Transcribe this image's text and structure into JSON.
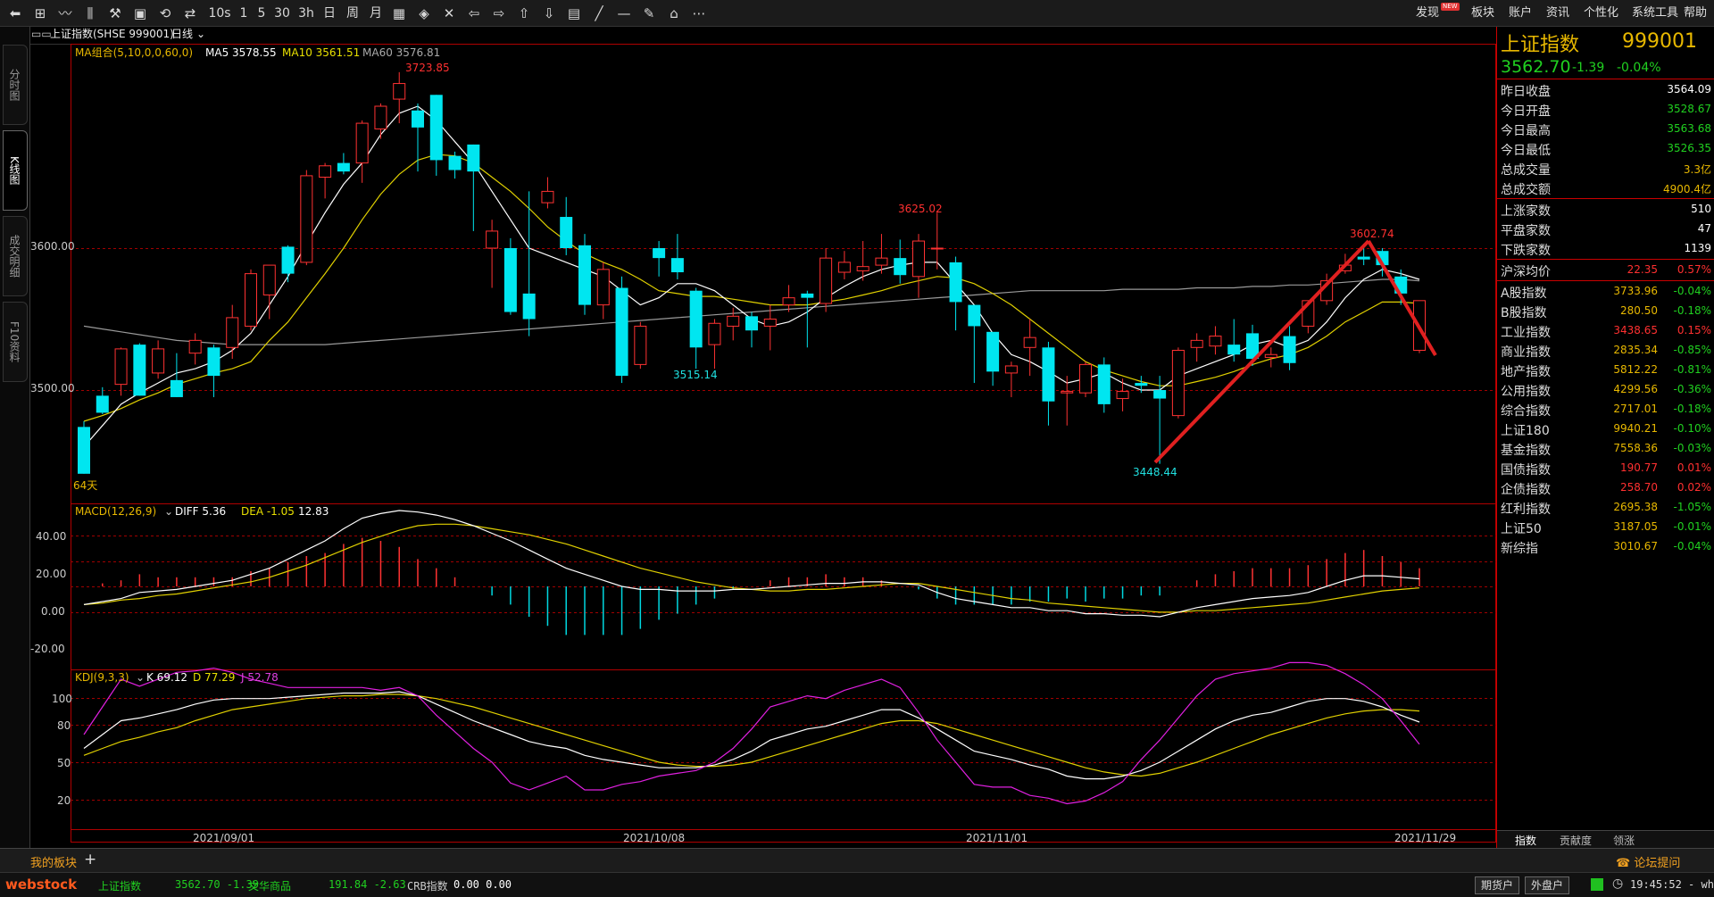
{
  "toolbar": {
    "right_menu": [
      "发现",
      "板块",
      "账户",
      "资讯",
      "个性化",
      "系统工具",
      "帮助"
    ],
    "new_badge": "NEW",
    "period_buttons": [
      "1",
      "5",
      "30",
      "3h",
      "日",
      "周",
      "月"
    ],
    "extra_label": "10s"
  },
  "left_tabs": [
    "分时图",
    "K线图",
    "成交明细",
    "F10资料"
  ],
  "chart": {
    "title": "上证指数(SHSE 999001)",
    "period": "日线",
    "ma_label": "MA组合(5,10,0,0,60,0)",
    "ma5_label": "MA5 3578.55",
    "ma10_label": "MA10 3561.51",
    "ma60_label": "MA60 3576.81",
    "high_label": "3723.85",
    "mid_high_label": "3625.02",
    "low_label1": "3515.14",
    "right_high_label": "3602.74",
    "low_label2": "3448.44",
    "days_label": "64天",
    "y_ticks": [
      "3600.00",
      "3500.00"
    ],
    "dates": [
      "2021/09/01",
      "2021/10/08",
      "2021/11/01",
      "2021/11/29"
    ],
    "macd_label": "MACD(12,26,9)",
    "diff_label": "DIFF 5.36",
    "dea_label": "DEA -1.05",
    "macd_val": "12.83",
    "macd_ticks": [
      "40.00",
      "20.00",
      "0.00",
      "-20.00"
    ],
    "kdj_label": "KDJ(9,3,3)",
    "k_label": "K 69.12",
    "d_label": "D 77.29",
    "j_label": "J 52.78",
    "kdj_ticks": [
      "100",
      "80",
      "50",
      "20"
    ]
  },
  "chart_data": {
    "type": "candlestick",
    "x_start": "2021/08/27",
    "x_end": "2021/11/29",
    "candles": [
      [
        3474,
        3441,
        3478,
        3441
      ],
      [
        3496,
        3484,
        3502,
        3483
      ],
      [
        3504,
        3529,
        3530,
        3496
      ],
      [
        3532,
        3496,
        3533,
        3496
      ],
      [
        3512,
        3529,
        3535,
        3508
      ],
      [
        3507,
        3495,
        3526,
        3495
      ],
      [
        3526,
        3535,
        3540,
        3518
      ],
      [
        3530,
        3510,
        3532,
        3495
      ],
      [
        3530,
        3551,
        3560,
        3522
      ],
      [
        3545,
        3582,
        3585,
        3542
      ],
      [
        3567,
        3588,
        3588,
        3550
      ],
      [
        3601,
        3582,
        3602,
        3576
      ],
      [
        3590,
        3651,
        3655,
        3588
      ],
      [
        3650,
        3658,
        3660,
        3635
      ],
      [
        3660,
        3654,
        3667,
        3652
      ],
      [
        3660,
        3688,
        3690,
        3646
      ],
      [
        3684,
        3700,
        3702,
        3677
      ],
      [
        3705,
        3716,
        3724,
        3688
      ],
      [
        3697,
        3685,
        3702,
        3654
      ],
      [
        3708,
        3662,
        3708,
        3651
      ],
      [
        3665,
        3655,
        3668,
        3649
      ],
      [
        3673,
        3654,
        3673,
        3612
      ],
      [
        3600,
        3612,
        3620,
        3572
      ],
      [
        3600,
        3555,
        3607,
        3553
      ],
      [
        3568,
        3550,
        3640,
        3538
      ],
      [
        3632,
        3640,
        3650,
        3628
      ],
      [
        3622,
        3600,
        3636,
        3595
      ],
      [
        3602,
        3560,
        3610,
        3553
      ],
      [
        3560,
        3585,
        3590,
        3550
      ],
      [
        3572,
        3510,
        3580,
        3505
      ],
      [
        3518,
        3545,
        3548,
        3515
      ],
      [
        3600,
        3593,
        3605,
        3580
      ],
      [
        3593,
        3583,
        3610,
        3578
      ],
      [
        3570,
        3530,
        3572,
        3515
      ],
      [
        3532,
        3547,
        3550,
        3515
      ],
      [
        3545,
        3552,
        3558,
        3535
      ],
      [
        3552,
        3542,
        3555,
        3530
      ],
      [
        3545,
        3550,
        3560,
        3528
      ],
      [
        3560,
        3565,
        3574,
        3555
      ],
      [
        3568,
        3565,
        3570,
        3530
      ],
      [
        3561,
        3593,
        3600,
        3555
      ],
      [
        3583,
        3590,
        3598,
        3578
      ],
      [
        3584,
        3587,
        3605,
        3577
      ],
      [
        3588,
        3593,
        3610,
        3582
      ],
      [
        3593,
        3581,
        3606,
        3575
      ],
      [
        3580,
        3605,
        3610,
        3565
      ],
      [
        3600,
        3600,
        3625,
        3585
      ],
      [
        3590,
        3562,
        3594,
        3542
      ],
      [
        3560,
        3545,
        3550,
        3505
      ],
      [
        3541,
        3513,
        3535,
        3503
      ],
      [
        3512,
        3517,
        3520,
        3495
      ],
      [
        3530,
        3537,
        3550,
        3510
      ],
      [
        3530,
        3492,
        3534,
        3475
      ],
      [
        3498,
        3499,
        3510,
        3475
      ],
      [
        3498,
        3518,
        3520,
        3495
      ],
      [
        3518,
        3490,
        3523,
        3484
      ],
      [
        3494,
        3499,
        3508,
        3485
      ],
      [
        3505,
        3503,
        3510,
        3498
      ],
      [
        3500,
        3494,
        3510,
        3448
      ],
      [
        3482,
        3528,
        3530,
        3480
      ],
      [
        3530,
        3535,
        3540,
        3520
      ],
      [
        3531,
        3538,
        3545,
        3525
      ],
      [
        3532,
        3525,
        3550,
        3520
      ],
      [
        3540,
        3522,
        3546,
        3517
      ],
      [
        3523,
        3525,
        3530,
        3516
      ],
      [
        3538,
        3519,
        3545,
        3514
      ],
      [
        3545,
        3563,
        3563,
        3540
      ],
      [
        3563,
        3577,
        3582,
        3560
      ],
      [
        3584,
        3588,
        3596,
        3582
      ],
      [
        3594,
        3592,
        3603,
        3588
      ],
      [
        3598,
        3588,
        3600,
        3580
      ],
      [
        3580,
        3568,
        3585,
        3560
      ],
      [
        3528,
        3563,
        3563,
        3526
      ]
    ],
    "ma5": [
      3460,
      3475,
      3490,
      3498,
      3505,
      3512,
      3515,
      3520,
      3528,
      3540,
      3560,
      3580,
      3603,
      3625,
      3645,
      3660,
      3680,
      3695,
      3700,
      3690,
      3675,
      3660,
      3640,
      3620,
      3600,
      3595,
      3590,
      3585,
      3580,
      3570,
      3560,
      3565,
      3575,
      3575,
      3570,
      3560,
      3550,
      3545,
      3548,
      3555,
      3565,
      3573,
      3580,
      3585,
      3588,
      3590,
      3590,
      3575,
      3560,
      3540,
      3525,
      3520,
      3513,
      3505,
      3508,
      3512,
      3505,
      3500,
      3500,
      3510,
      3515,
      3520,
      3525,
      3532,
      3535,
      3530,
      3535,
      3548,
      3565,
      3578,
      3585,
      3582,
      3578
    ],
    "ma10": [
      3478,
      3482,
      3487,
      3493,
      3498,
      3504,
      3508,
      3512,
      3515,
      3520,
      3535,
      3548,
      3565,
      3582,
      3600,
      3620,
      3638,
      3652,
      3662,
      3666,
      3665,
      3660,
      3650,
      3640,
      3628,
      3615,
      3605,
      3596,
      3590,
      3585,
      3578,
      3570,
      3568,
      3566,
      3566,
      3564,
      3562,
      3560,
      3560,
      3560,
      3562,
      3564,
      3567,
      3570,
      3574,
      3577,
      3580,
      3579,
      3575,
      3568,
      3560,
      3550,
      3540,
      3530,
      3520,
      3514,
      3510,
      3506,
      3503,
      3503,
      3506,
      3509,
      3513,
      3518,
      3522,
      3525,
      3530,
      3538,
      3548,
      3555,
      3562,
      3562,
      3561
    ],
    "ma60": [
      3545,
      3543,
      3541,
      3539,
      3537,
      3535,
      3534,
      3533,
      3532,
      3532,
      3532,
      3532,
      3532,
      3532,
      3533,
      3534,
      3535,
      3536,
      3537,
      3538,
      3539,
      3540,
      3541,
      3542,
      3543,
      3544,
      3545,
      3546,
      3547,
      3548,
      3549,
      3550,
      3551,
      3552,
      3553,
      3554,
      3555,
      3556,
      3557,
      3558,
      3559,
      3560,
      3561,
      3562,
      3563,
      3564,
      3565,
      3566,
      3567,
      3568,
      3569,
      3570,
      3570,
      3570,
      3570,
      3570,
      3571,
      3571,
      3571,
      3571,
      3572,
      3572,
      3572,
      3573,
      3573,
      3574,
      3574,
      3575,
      3576,
      3577,
      3578,
      3578,
      3577
    ],
    "macd": {
      "diff": [
        -12,
        -10,
        -8,
        -4,
        -3,
        -2,
        0,
        2,
        4,
        8,
        12,
        18,
        24,
        30,
        38,
        45,
        48,
        50,
        49,
        47,
        44,
        40,
        35,
        30,
        24,
        18,
        12,
        8,
        4,
        0,
        -2,
        -2,
        -3,
        -3,
        -3,
        -2,
        -2,
        -1,
        0,
        1,
        2,
        2,
        3,
        3,
        2,
        1,
        -4,
        -8,
        -10,
        -12,
        -14,
        -14,
        -16,
        -16,
        -18,
        -18,
        -19,
        -19,
        -20,
        -17,
        -14,
        -12,
        -10,
        -8,
        -7,
        -6,
        -4,
        0,
        4,
        7,
        7,
        6,
        5
      ],
      "dea": [
        -12,
        -11,
        -9,
        -8,
        -6,
        -5,
        -3,
        -1,
        1,
        3,
        6,
        10,
        14,
        19,
        24,
        29,
        33,
        37,
        40,
        41,
        41,
        40,
        38,
        36,
        34,
        31,
        28,
        24,
        20,
        16,
        12,
        9,
        6,
        3,
        1,
        -1,
        -2,
        -3,
        -3,
        -2,
        -2,
        -1,
        0,
        1,
        2,
        2,
        0,
        -2,
        -4,
        -6,
        -8,
        -9,
        -11,
        -12,
        -13,
        -14,
        -15,
        -16,
        -17,
        -17,
        -16,
        -16,
        -15,
        -14,
        -13,
        -12,
        -11,
        -9,
        -7,
        -5,
        -3,
        -2,
        -1
      ],
      "hist": [
        0,
        2,
        4,
        8,
        6,
        6,
        6,
        6,
        6,
        10,
        12,
        16,
        20,
        22,
        28,
        32,
        30,
        26,
        18,
        12,
        6,
        0,
        -6,
        -12,
        -20,
        -26,
        -32,
        -32,
        -32,
        -32,
        -28,
        -22,
        -18,
        -12,
        -8,
        -2,
        0,
        4,
        6,
        6,
        8,
        6,
        6,
        4,
        0,
        -2,
        -8,
        -12,
        -12,
        -12,
        -12,
        -10,
        -10,
        -8,
        -10,
        -8,
        -8,
        -6,
        -6,
        0,
        4,
        8,
        10,
        12,
        12,
        12,
        14,
        18,
        22,
        24,
        20,
        16,
        12
      ]
    },
    "kdj": {
      "k": [
        50,
        60,
        70,
        72,
        75,
        78,
        82,
        85,
        86,
        86,
        86,
        87,
        88,
        89,
        90,
        90,
        90,
        91,
        88,
        82,
        76,
        70,
        65,
        60,
        55,
        52,
        50,
        45,
        42,
        40,
        38,
        36,
        36,
        36,
        38,
        42,
        48,
        56,
        60,
        64,
        66,
        70,
        74,
        78,
        78,
        72,
        64,
        56,
        48,
        45,
        42,
        38,
        35,
        30,
        28,
        28,
        30,
        34,
        40,
        48,
        56,
        64,
        70,
        74,
        76,
        80,
        84,
        86,
        86,
        84,
        80,
        74,
        69
      ],
      "d": [
        45,
        50,
        55,
        58,
        62,
        65,
        70,
        74,
        78,
        80,
        82,
        84,
        86,
        87,
        88,
        88,
        89,
        89,
        88,
        86,
        83,
        80,
        76,
        72,
        68,
        64,
        60,
        56,
        52,
        48,
        44,
        40,
        38,
        37,
        37,
        38,
        40,
        44,
        48,
        52,
        56,
        60,
        64,
        68,
        70,
        70,
        68,
        64,
        60,
        56,
        52,
        48,
        44,
        40,
        36,
        33,
        31,
        30,
        32,
        36,
        40,
        45,
        50,
        55,
        60,
        64,
        68,
        72,
        75,
        77,
        78,
        78,
        77
      ],
      "j": [
        60,
        80,
        100,
        95,
        100,
        105,
        106,
        108,
        105,
        100,
        97,
        94,
        94,
        94,
        94,
        94,
        92,
        94,
        88,
        74,
        62,
        50,
        40,
        25,
        20,
        25,
        30,
        20,
        20,
        24,
        26,
        30,
        32,
        34,
        40,
        50,
        64,
        80,
        84,
        88,
        86,
        92,
        96,
        100,
        94,
        76,
        56,
        40,
        24,
        22,
        22,
        16,
        14,
        10,
        12,
        18,
        26,
        42,
        56,
        72,
        88,
        100,
        104,
        106,
        108,
        112,
        112,
        110,
        104,
        96,
        86,
        70,
        53
      ]
    }
  },
  "info": {
    "title": "上证指数",
    "code": "999001",
    "price": "3562.70",
    "change": "-1.39",
    "pct": "-0.04%",
    "rows1": [
      {
        "label": "昨日收盘",
        "value": "3564.09",
        "color": "#ffffff"
      },
      {
        "label": "今日开盘",
        "value": "3528.67",
        "color": "#20d020"
      },
      {
        "label": "今日最高",
        "value": "3563.68",
        "color": "#20d020"
      },
      {
        "label": "今日最低",
        "value": "3526.35",
        "color": "#20d020"
      },
      {
        "label": "总成交量",
        "value": "3.3亿",
        "color": "#e8b800"
      },
      {
        "label": "总成交额",
        "value": "4900.4亿",
        "color": "#e8b800"
      }
    ],
    "rows2": [
      {
        "label": "上涨家数",
        "value": "510",
        "color": "#ffffff"
      },
      {
        "label": "平盘家数",
        "value": "47",
        "color": "#ffffff"
      },
      {
        "label": "下跌家数",
        "value": "1139",
        "color": "#ffffff"
      }
    ],
    "avg_row": {
      "label": "沪深均价",
      "v1": "22.35",
      "v2": "0.57%",
      "color": "#ff3030"
    },
    "indices": [
      {
        "label": "A股指数",
        "v1": "3733.96",
        "v2": "-0.04%",
        "c1": "#e8b800",
        "c2": "#20d020"
      },
      {
        "label": "B股指数",
        "v1": "280.50",
        "v2": "-0.18%",
        "c1": "#e8b800",
        "c2": "#20d020"
      },
      {
        "label": "工业指数",
        "v1": "3438.65",
        "v2": "0.15%",
        "c1": "#ff3030",
        "c2": "#ff3030"
      },
      {
        "label": "商业指数",
        "v1": "2835.34",
        "v2": "-0.85%",
        "c1": "#e8b800",
        "c2": "#20d020"
      },
      {
        "label": "地产指数",
        "v1": "5812.22",
        "v2": "-0.81%",
        "c1": "#e8b800",
        "c2": "#20d020"
      },
      {
        "label": "公用指数",
        "v1": "4299.56",
        "v2": "-0.36%",
        "c1": "#e8b800",
        "c2": "#20d020"
      },
      {
        "label": "综合指数",
        "v1": "2717.01",
        "v2": "-0.18%",
        "c1": "#e8b800",
        "c2": "#20d020"
      },
      {
        "label": "上证180",
        "v1": "9940.21",
        "v2": "-0.10%",
        "c1": "#e8b800",
        "c2": "#20d020"
      },
      {
        "label": "基金指数",
        "v1": "7558.36",
        "v2": "-0.03%",
        "c1": "#e8b800",
        "c2": "#20d020"
      },
      {
        "label": "国债指数",
        "v1": "190.77",
        "v2": "0.01%",
        "c1": "#ff3030",
        "c2": "#ff3030"
      },
      {
        "label": "企债指数",
        "v1": "258.70",
        "v2": "0.02%",
        "c1": "#ff3030",
        "c2": "#ff3030"
      },
      {
        "label": "红利指数",
        "v1": "2695.38",
        "v2": "-1.05%",
        "c1": "#e8b800",
        "c2": "#20d020"
      },
      {
        "label": "上证50",
        "v1": "3187.05",
        "v2": "-0.01%",
        "c1": "#e8b800",
        "c2": "#20d020"
      },
      {
        "label": "新综指",
        "v1": "3010.67",
        "v2": "-0.04%",
        "c1": "#e8b800",
        "c2": "#20d020"
      }
    ],
    "bottom_tabs": [
      "指数",
      "贡献度",
      "领涨"
    ]
  },
  "bottom": {
    "tab": "我的板块",
    "forum": "论坛提问"
  },
  "status": {
    "brand": "webstock",
    "s1_name": "上证指数",
    "s1_vals": "3562.70 -1.39",
    "s2_name": "文华商品",
    "s2_vals": "191.84 -2.63",
    "s3_name": "CRB指数",
    "s3_vals": "0.00 0.00",
    "btn1": "期货户",
    "btn2": "外盘户",
    "time": "19:45:52 - wh"
  }
}
